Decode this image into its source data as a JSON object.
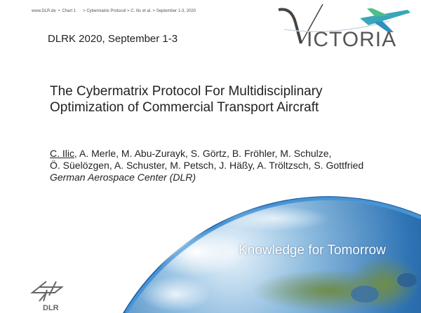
{
  "header": {
    "site": "www.DLR.de",
    "chart": "Chart 1",
    "breadcrumb": "> Cybermatrix Protocol > C. Ilic et al. > September 1-3, 2020"
  },
  "conference": "DLRK 2020, September 1-3",
  "title": {
    "line1": "The Cybermatrix Protocol For Multidisciplinary",
    "line2": "Optimization of Commercial Transport Aircraft"
  },
  "authors": {
    "presenter": "C. Ilic",
    "line1_rest": ", A. Merle, M. Abu-Zurayk, S. Görtz, B. Fröhler, M. Schulze,",
    "line2": "Ö. Süelözgen, A. Schuster, M. Petsch, J. Häßy, A. Tröltzsch, S. Gottfried",
    "organization": "German Aerospace Center (DLR)"
  },
  "tagline": "Knowledge for Tomorrow",
  "logos": {
    "victoria": "VICTORIA",
    "dlr": "DLR"
  },
  "colors": {
    "ocean": "#2a6fb0",
    "atmosphere": "#3f8fd6",
    "land": "#6c8a4a",
    "logo_gray": "#555555"
  }
}
